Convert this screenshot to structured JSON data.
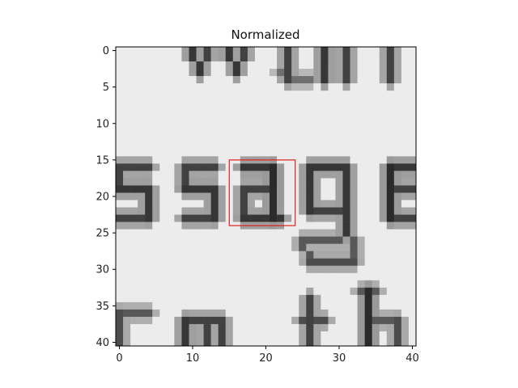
{
  "chart_data": {
    "type": "heatmap",
    "title": "Normalized",
    "xlabel": "",
    "ylabel": "",
    "colormap": "gray",
    "grid": false,
    "legend": "none",
    "xlim": [
      -0.5,
      40.5
    ],
    "ylim": [
      40.5,
      -0.5
    ],
    "x_ticks": [
      "0",
      "10",
      "20",
      "30",
      "40"
    ],
    "y_ticks": [
      "0",
      "5",
      "10",
      "15",
      "20",
      "25",
      "30",
      "35",
      "40"
    ],
    "matrix_shape": [
      41,
      41
    ],
    "content_description_visible": "grayscale crop of scanned text showing dark glyph strokes: partial letters on rows 0-4, the letters 's s a g e' on rows 15-32, and partial letters on rows 34-40",
    "annotation": {
      "type": "rectangle",
      "color": "#e02020",
      "x_range": [
        15,
        24
      ],
      "y_range": [
        15,
        24
      ]
    }
  }
}
